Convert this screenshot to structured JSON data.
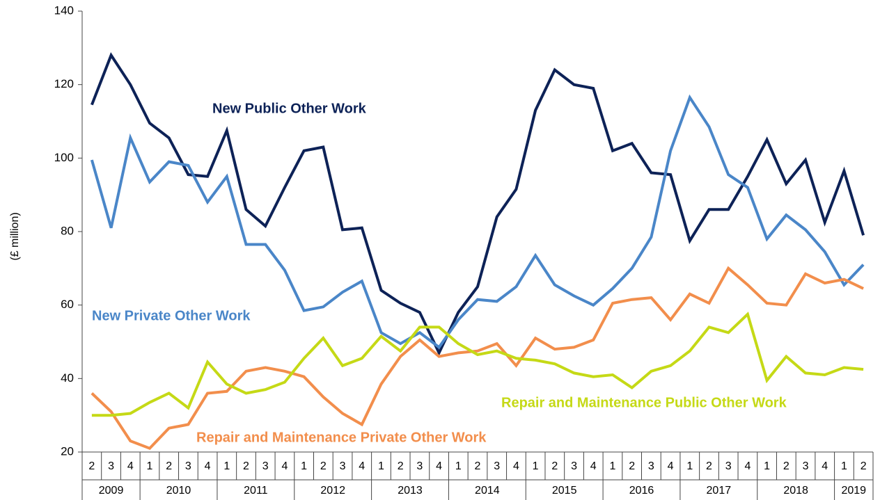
{
  "chart_data": {
    "type": "line",
    "y_label": "(£ million)",
    "categories": [
      "2",
      "3",
      "4",
      "1",
      "2",
      "3",
      "4",
      "1",
      "2",
      "3",
      "4",
      "1",
      "2",
      "3",
      "4",
      "1",
      "2",
      "3",
      "4",
      "1",
      "2",
      "3",
      "4",
      "1",
      "2",
      "3",
      "4",
      "1",
      "2",
      "3",
      "4",
      "1",
      "2",
      "3",
      "4",
      "1",
      "2",
      "3",
      "4",
      "1",
      "2"
    ],
    "years": [
      "2009",
      "2010",
      "2011",
      "2012",
      "2013",
      "2014",
      "2015",
      "2016",
      "2017",
      "2018",
      "2019"
    ],
    "ylim": [
      20,
      140
    ],
    "yticks": [
      20,
      40,
      60,
      80,
      100,
      120,
      140
    ],
    "grid": false,
    "legend": false,
    "series": [
      {
        "name": "New Public Other Work",
        "color": "#0d2257",
        "values": [
          114.5,
          128,
          120,
          109.5,
          105.5,
          95.5,
          95,
          107.5,
          86,
          81.5,
          92,
          102,
          103,
          80.5,
          81,
          64,
          60.5,
          58,
          47,
          58,
          65,
          84,
          91.5,
          113,
          124,
          120,
          119,
          102,
          104,
          96,
          95.5,
          77.5,
          86,
          86,
          95,
          105,
          93,
          99.5,
          82.5,
          96.5,
          79
        ]
      },
      {
        "name": "New Private Other Work",
        "color": "#4a86c8",
        "values": [
          99.5,
          81,
          105.5,
          93.5,
          99,
          98,
          88,
          95,
          76.5,
          76.5,
          69.5,
          58.5,
          59.5,
          63.5,
          66.5,
          52.5,
          49.5,
          52.5,
          48.5,
          56,
          61.5,
          61,
          65,
          73.5,
          65.5,
          62.5,
          60,
          64.5,
          70,
          78.5,
          102,
          116.5,
          108.5,
          95.5,
          92,
          78,
          84.5,
          80.5,
          74.5,
          65.5,
          71
        ]
      },
      {
        "name": "Repair and Maintenance Private Other Work",
        "color": "#f28e4c",
        "values": [
          36,
          31,
          23,
          21,
          26.5,
          27.5,
          36,
          36.5,
          42,
          43,
          42,
          40.5,
          35,
          30.5,
          27.5,
          38.5,
          46,
          50.5,
          46,
          47,
          47.5,
          49.5,
          43.5,
          51,
          48,
          48.5,
          50.5,
          60.5,
          61.5,
          62,
          56,
          63,
          60.5,
          70,
          65.5,
          60.5,
          60,
          68.5,
          66,
          67,
          64.5
        ]
      },
      {
        "name": "Repair and Maintenance Public Other Work",
        "color": "#c5d916",
        "values": [
          30,
          30,
          30.5,
          33.5,
          36,
          32,
          44.5,
          38.5,
          36,
          37,
          39,
          45.5,
          51,
          43.5,
          45.5,
          51.5,
          47.5,
          54,
          54,
          49.5,
          46.5,
          47.5,
          45.5,
          45,
          44,
          41.5,
          40.5,
          41,
          37.5,
          42,
          43.5,
          47.5,
          54,
          52.5,
          57.5,
          39.5,
          46,
          41.5,
          41,
          43,
          42.5
        ]
      }
    ]
  }
}
